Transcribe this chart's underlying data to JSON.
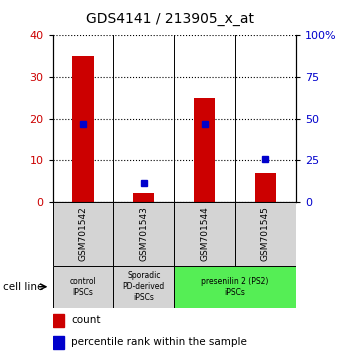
{
  "title": "GDS4141 / 213905_x_at",
  "samples": [
    "GSM701542",
    "GSM701543",
    "GSM701544",
    "GSM701545"
  ],
  "counts": [
    35,
    2,
    25,
    7
  ],
  "percentiles": [
    47,
    11,
    47,
    26
  ],
  "left_ylim": [
    0,
    40
  ],
  "right_ylim": [
    0,
    100
  ],
  "left_yticks": [
    0,
    10,
    20,
    30,
    40
  ],
  "right_yticks": [
    0,
    25,
    50,
    75,
    100
  ],
  "right_yticklabels": [
    "0",
    "25",
    "50",
    "75",
    "100%"
  ],
  "bar_color": "#cc0000",
  "dot_color": "#0000cc",
  "group_data": [
    {
      "label": "control\nIPSCs",
      "start": 0,
      "end": 0,
      "color": "#d4d4d4"
    },
    {
      "label": "Sporadic\nPD-derived\niPSCs",
      "start": 1,
      "end": 1,
      "color": "#d4d4d4"
    },
    {
      "label": "presenilin 2 (PS2)\niPSCs",
      "start": 2,
      "end": 3,
      "color": "#55ee55"
    }
  ],
  "cell_line_label": "cell line",
  "legend_count": "count",
  "legend_percentile": "percentile rank within the sample",
  "title_fontsize": 10,
  "tick_fontsize": 8,
  "bar_width": 0.35
}
